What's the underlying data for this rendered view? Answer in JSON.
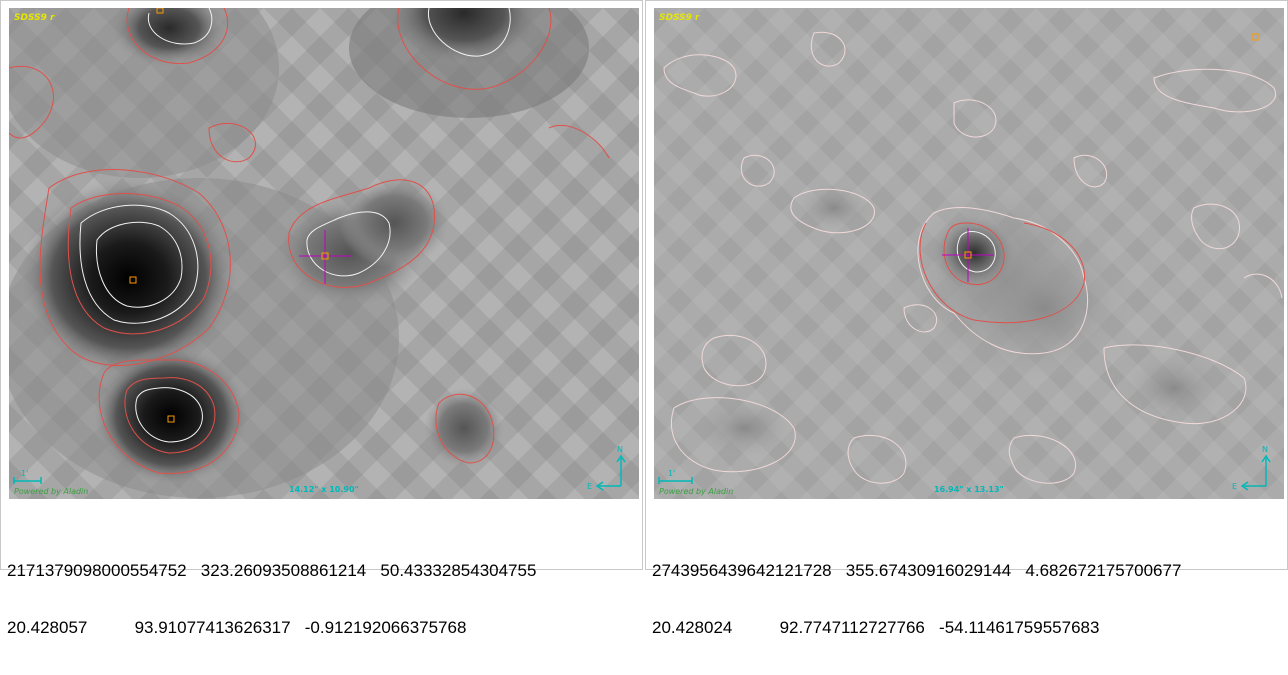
{
  "panels": [
    {
      "survey_label": "SDSS9 r",
      "scale_label": "1'",
      "credit": "Powered by Aladin",
      "fov": "14.12\" x 10.90\"",
      "compass": {
        "north": "N",
        "east": "E"
      },
      "caption_line1": "2171379098000554752   323.26093508861214   50.43332854304755",
      "caption_line2": "20.428057          93.91077413626317   -0.912192066375768"
    },
    {
      "survey_label": "SDSS9 r",
      "scale_label": "1'",
      "credit": "Powered by Aladin",
      "fov": "16.94\" x 13.13\"",
      "compass": {
        "north": "N",
        "east": "E"
      },
      "caption_line1": "2743956439642121728   355.67430916029144   4.682672175700677",
      "caption_line2": "20.428024          92.7747112727766   -54.11461759557683"
    }
  ],
  "colors": {
    "label_yellow": "#e6e600",
    "contour_red": "#e0504a",
    "contour_white": "#f2f2f2",
    "crosshair": "#c000c0",
    "marker": "#ff9a00",
    "compass": "#00b8b8",
    "credit": "#3aa040"
  }
}
